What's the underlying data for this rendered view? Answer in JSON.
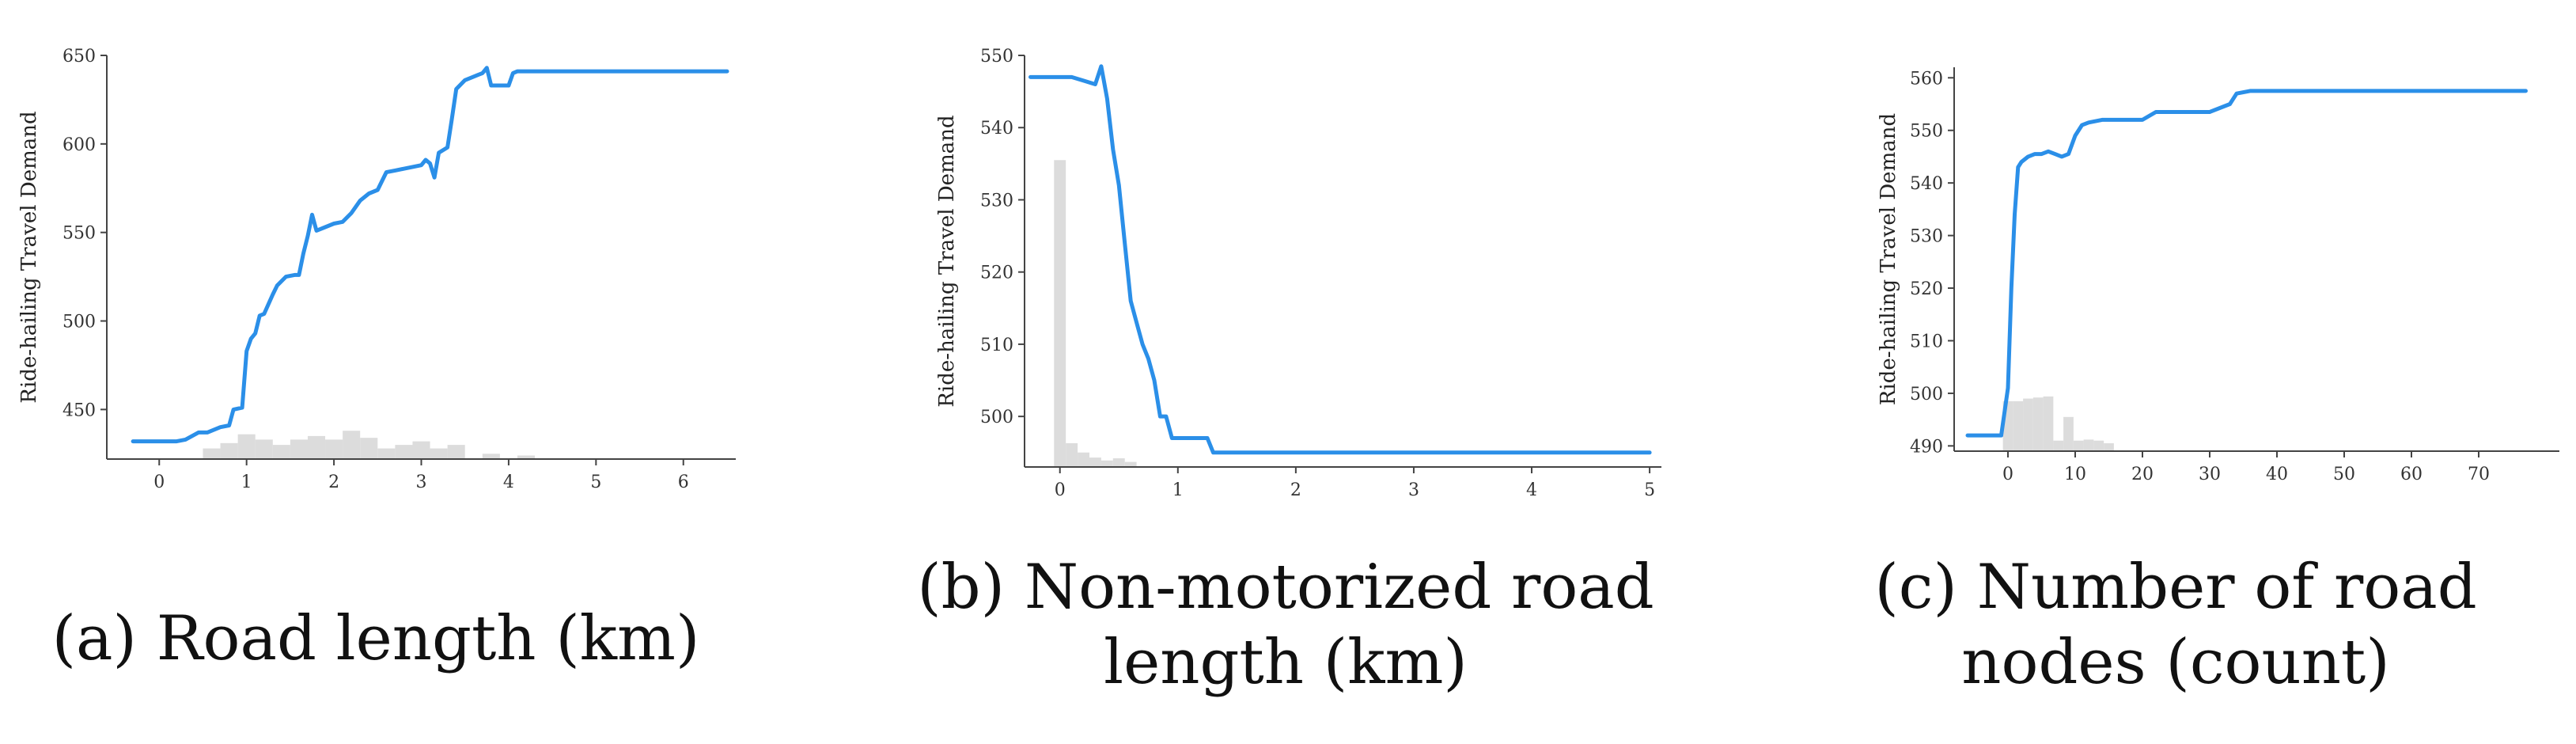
{
  "colors": {
    "line": "#2b8fe8",
    "hist": "#dcdcdc",
    "axis": "#444444"
  },
  "captions": {
    "a": "(a) Road length (km)",
    "b_line1": "(b) Non-motorized road",
    "b_line2": "length (km)",
    "c_line1": "(c) Number of road",
    "c_line2": "nodes (count)"
  },
  "chart_data": [
    {
      "type": "line",
      "ylabel": "Ride-hailing Travel Demand",
      "xlim": [
        -0.6,
        6.6
      ],
      "ylim": [
        422,
        650
      ],
      "xticks": [
        0,
        1,
        2,
        3,
        4,
        5,
        6
      ],
      "yticks": [
        450,
        500,
        550,
        600,
        650
      ],
      "series": [
        {
          "x": [
            -0.3,
            0.2,
            0.3,
            0.45,
            0.55,
            0.7,
            0.8,
            0.85,
            0.95,
            1.0,
            1.05,
            1.1,
            1.15,
            1.2,
            1.3,
            1.35,
            1.45,
            1.55,
            1.6,
            1.65,
            1.7,
            1.75,
            1.8,
            1.9,
            2.0,
            2.1,
            2.2,
            2.3,
            2.4,
            2.5,
            2.6,
            2.7,
            2.8,
            2.9,
            3.0,
            3.05,
            3.1,
            3.15,
            3.2,
            3.3,
            3.35,
            3.4,
            3.5,
            3.6,
            3.65,
            3.7,
            3.75,
            3.8,
            3.85,
            3.95,
            4.0,
            4.05,
            4.1,
            4.15,
            4.2,
            4.5,
            5.0,
            5.5,
            6.0,
            6.5
          ],
          "y": [
            432,
            432,
            433,
            437,
            437,
            440,
            441,
            450,
            451,
            483,
            490,
            493,
            503,
            504,
            515,
            520,
            525,
            526,
            526,
            538,
            548,
            560,
            551,
            553,
            555,
            556,
            561,
            568,
            572,
            574,
            584,
            585,
            586,
            587,
            588,
            591,
            589,
            581,
            595,
            598,
            614,
            631,
            636,
            638,
            639,
            640,
            643,
            633,
            633,
            633,
            633,
            640,
            641,
            641,
            641,
            641,
            641,
            641,
            641,
            641
          ]
        }
      ],
      "histogram": {
        "x": [
          0.6,
          0.8,
          1.0,
          1.2,
          1.4,
          1.6,
          1.8,
          2.0,
          2.2,
          2.4,
          2.6,
          2.8,
          3.0,
          3.2,
          3.4,
          3.8,
          4.2
        ],
        "y": [
          428,
          431,
          436,
          433,
          430,
          433,
          435,
          433,
          438,
          434,
          428,
          430,
          432,
          428,
          430,
          425,
          424
        ]
      }
    },
    {
      "type": "line",
      "ylabel": "Ride-hailing Travel Demand",
      "xlim": [
        -0.3,
        5.1
      ],
      "ylim": [
        493,
        550
      ],
      "xticks": [
        0,
        1,
        2,
        3,
        4,
        5
      ],
      "yticks": [
        500,
        510,
        520,
        530,
        540,
        550
      ],
      "series": [
        {
          "x": [
            -0.25,
            0.1,
            0.2,
            0.3,
            0.35,
            0.4,
            0.45,
            0.5,
            0.55,
            0.6,
            0.65,
            0.7,
            0.75,
            0.8,
            0.85,
            0.9,
            0.95,
            1.0,
            1.05,
            1.1,
            1.2,
            1.25,
            1.3,
            2.0,
            3.0,
            4.0,
            5.0
          ],
          "y": [
            547,
            547,
            546.5,
            546,
            548.5,
            544,
            537,
            532,
            524,
            516,
            513,
            510,
            508,
            505,
            500,
            500,
            497,
            497,
            497,
            497,
            497,
            497,
            495,
            495,
            495,
            495,
            495
          ]
        }
      ],
      "histogram": {
        "x": [
          0.0,
          0.1,
          0.2,
          0.3,
          0.4,
          0.5,
          0.6
        ],
        "y": [
          535.5,
          496.3,
          495.0,
          494.3,
          493.9,
          494.2,
          493.7
        ]
      }
    },
    {
      "type": "line",
      "ylabel": "Ride-hailing Travel Demand",
      "xlim": [
        -8,
        82
      ],
      "ylim": [
        489,
        562
      ],
      "xticks": [
        0,
        10,
        20,
        30,
        40,
        50,
        60,
        70
      ],
      "yticks": [
        490,
        500,
        510,
        520,
        530,
        540,
        550,
        560
      ],
      "series": [
        {
          "x": [
            -6,
            -1,
            0,
            0.5,
            1,
            1.5,
            2,
            3,
            4,
            5,
            6,
            7,
            8,
            9,
            10,
            11,
            12,
            14,
            16,
            20,
            22,
            24,
            26,
            30,
            33,
            34,
            36,
            38,
            40,
            50,
            60,
            70,
            77
          ],
          "y": [
            492,
            492,
            501,
            520,
            534,
            543,
            544,
            545,
            545.5,
            545.5,
            546,
            545.5,
            545,
            545.5,
            549,
            551,
            551.5,
            552,
            552,
            552,
            553.5,
            553.5,
            553.5,
            553.5,
            555,
            557,
            557.5,
            557.5,
            557.5,
            557.5,
            557.5,
            557.5,
            557.5
          ]
        }
      ],
      "histogram": {
        "x": [
          0.0,
          1.5,
          3.0,
          4.5,
          6.0,
          7.5,
          9.0,
          10.5,
          12.0,
          13.5,
          15.0
        ],
        "y": [
          498.5,
          498.5,
          499.0,
          499.2,
          499.4,
          491.0,
          495.5,
          491.0,
          491.2,
          491.0,
          490.5
        ]
      }
    }
  ]
}
